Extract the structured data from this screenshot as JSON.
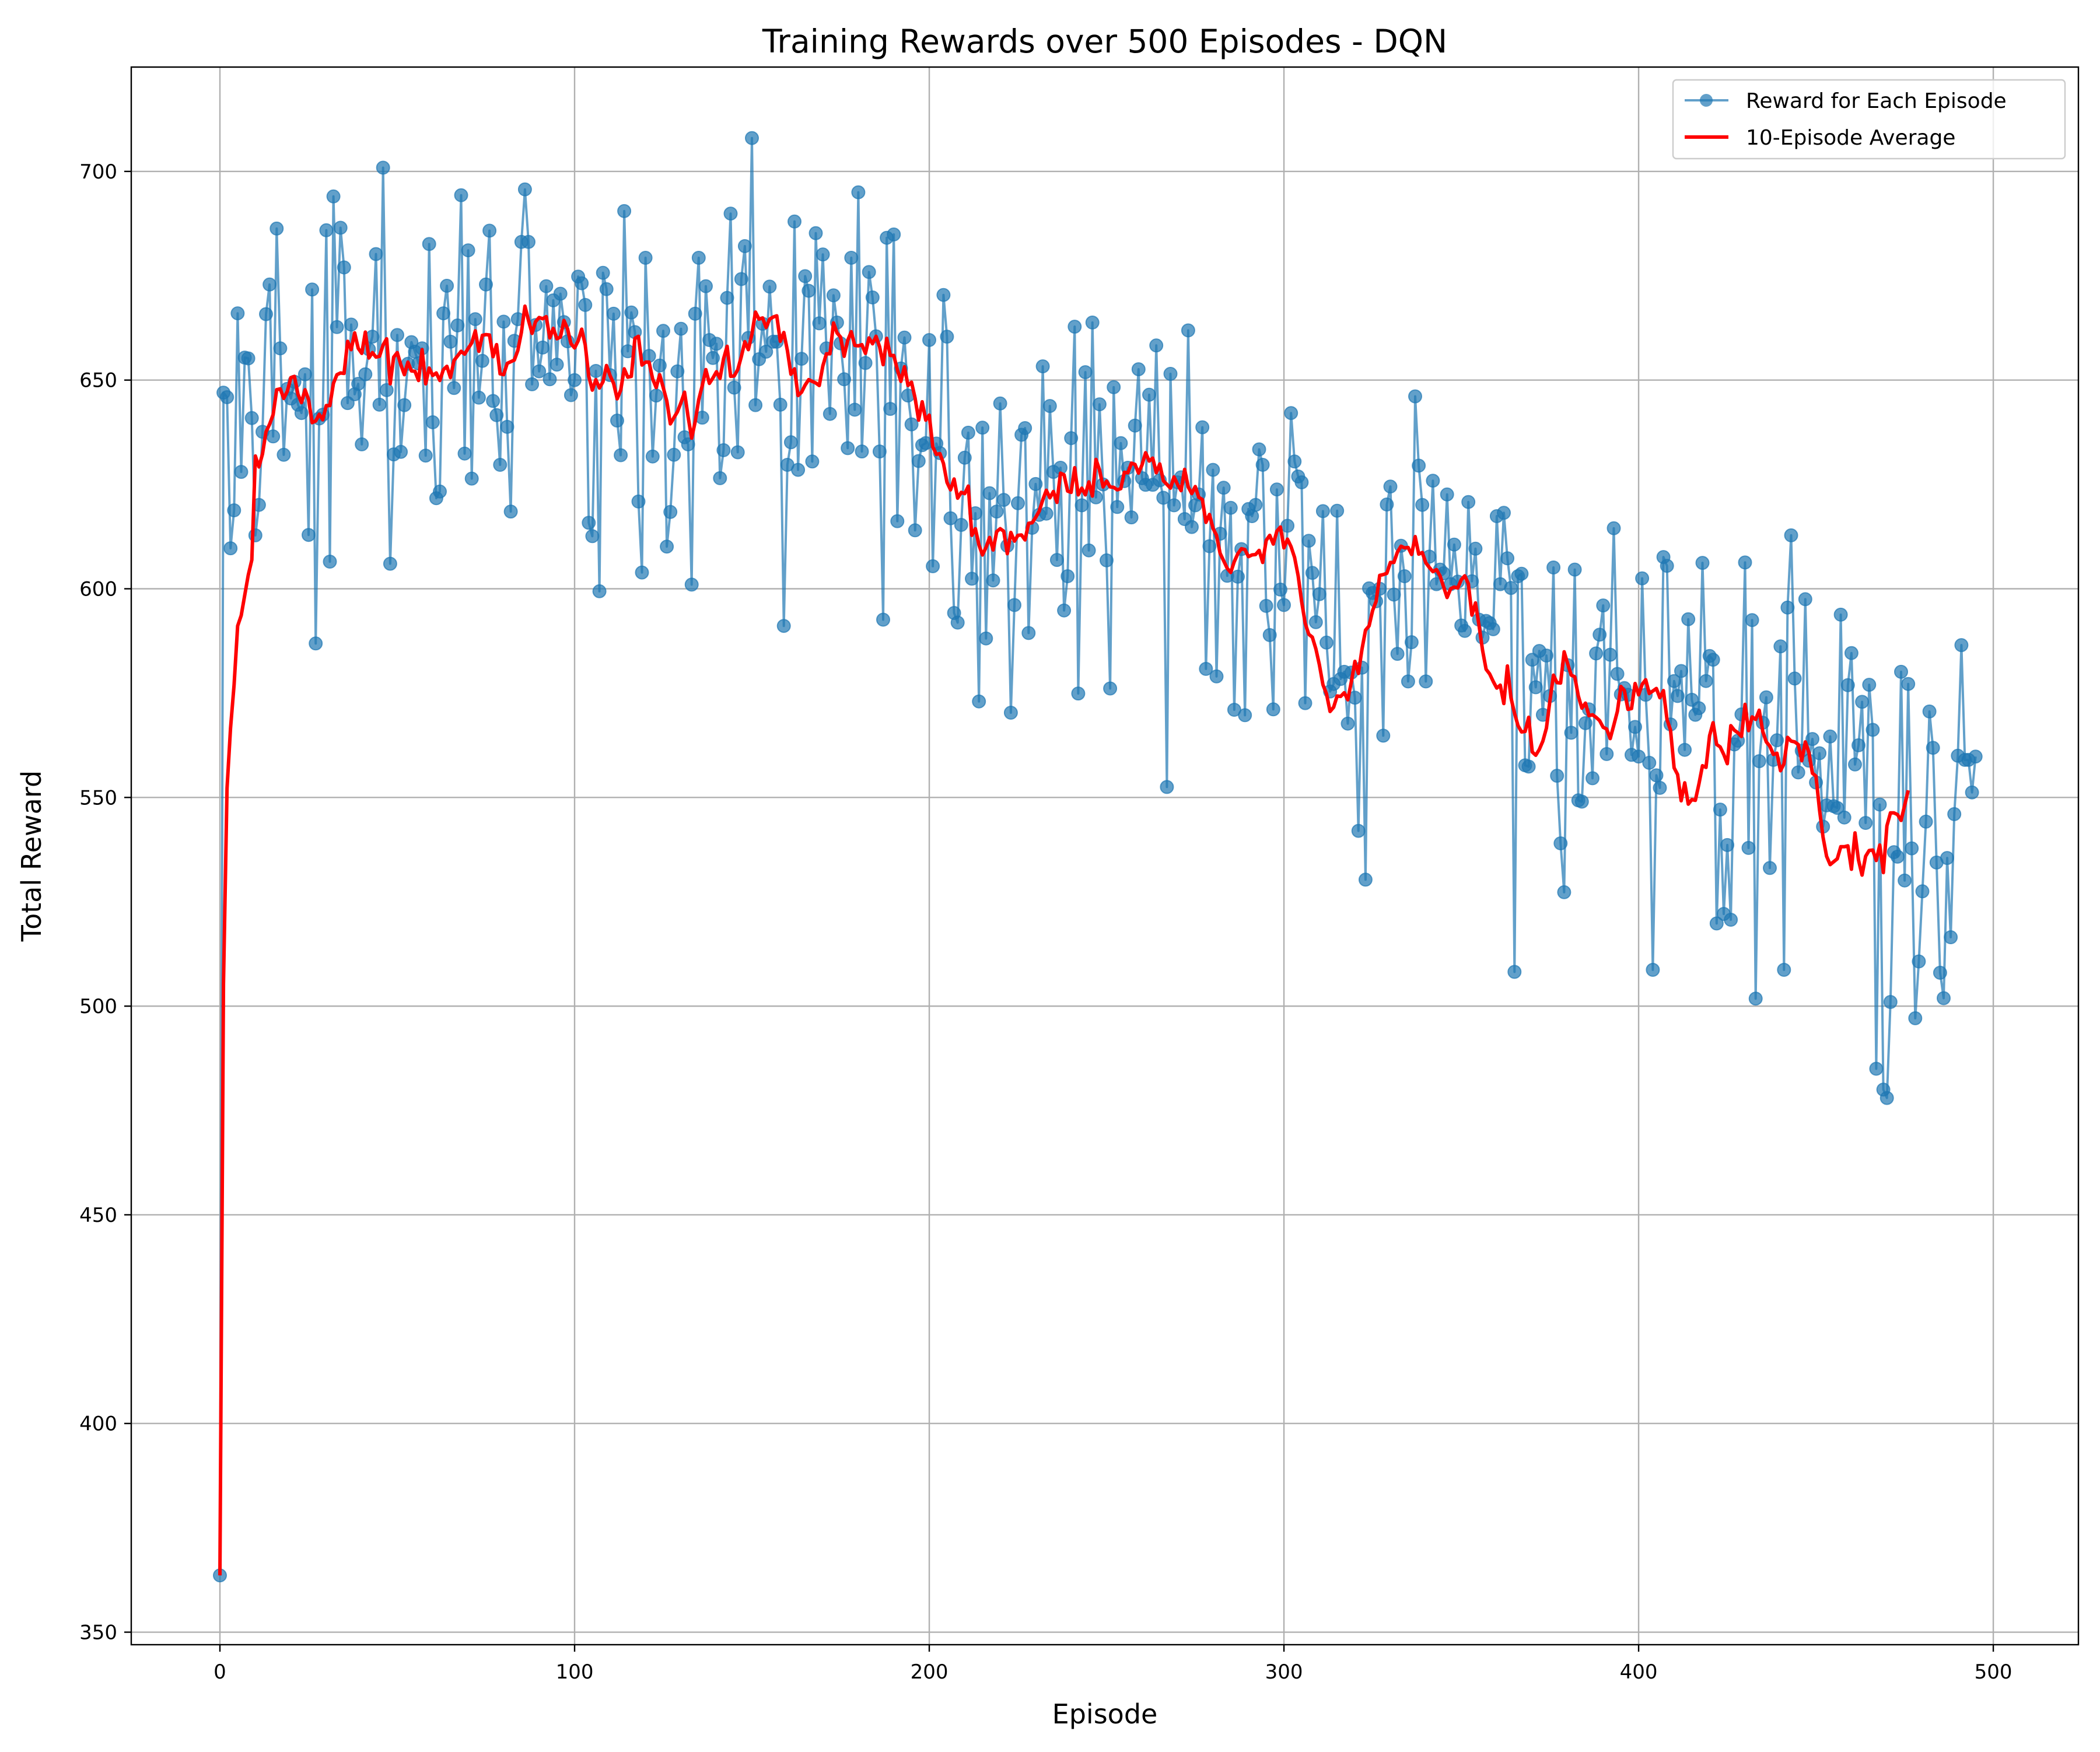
{
  "chart_data": {
    "type": "line",
    "title": "Training Rewards over 500 Episodes - DQN",
    "xlabel": "Episode",
    "ylabel": "Total Reward",
    "xlim": [
      -25,
      524
    ],
    "ylim": [
      347,
      725
    ],
    "xticks": [
      0,
      100,
      200,
      300,
      400,
      500
    ],
    "yticks": [
      350,
      400,
      450,
      500,
      550,
      600,
      650,
      700
    ],
    "grid": true,
    "legend_position": "top-right",
    "colors": {
      "raw": "#1f77b4",
      "average": "#ff0000"
    },
    "series": [
      {
        "name": "Reward for Each Episode",
        "marker": "circle",
        "x_start": 0,
        "values": [
          363.6,
          647.0,
          645.9,
          609.7,
          618.8,
          666.0,
          628.0,
          655.4,
          655.2,
          640.9,
          612.8,
          620.1,
          637.6,
          665.8,
          672.9,
          636.5,
          686.3,
          657.6,
          632.1,
          647.9,
          645.6,
          649.6,
          644.1,
          642.1,
          651.4,
          612.9,
          671.7,
          586.9,
          640.8,
          641.7,
          685.9,
          606.5,
          694.0,
          662.7,
          686.5,
          677.0,
          644.5,
          663.3,
          646.6,
          649.1,
          634.6,
          651.4,
          657.4,
          660.4,
          680.2,
          644.1,
          700.9,
          647.6,
          606.0,
          632.2,
          660.8,
          632.8,
          644.0,
          653.9,
          659.1,
          656.8,
          654.0,
          657.6,
          631.9,
          682.6,
          639.9,
          621.7,
          623.3,
          666.0,
          672.6,
          659.2,
          648.1,
          663.1,
          694.3,
          632.4,
          681.1,
          626.4,
          664.6,
          645.8,
          654.6,
          672.9,
          685.8,
          645.0,
          641.6,
          629.7,
          664.0,
          638.8,
          618.5,
          659.4,
          664.6,
          683.1,
          695.7,
          683.1,
          649.0,
          663.2,
          652.1,
          657.8,
          672.5,
          650.2,
          669.1,
          653.7,
          670.7,
          663.9,
          659.3,
          646.4,
          650.0,
          674.8,
          673.2,
          668.0,
          615.8,
          612.6,
          652.2,
          599.4,
          675.7,
          671.8,
          651.2,
          665.9,
          640.3,
          632.0,
          690.5,
          656.9,
          666.2,
          661.5,
          620.9,
          603.9,
          679.3,
          655.8,
          631.7,
          646.3,
          653.5,
          661.8,
          610.1,
          618.4,
          632.1,
          652.1,
          662.3,
          636.3,
          634.6,
          601.0,
          665.9,
          679.3,
          641.0,
          672.5,
          659.6,
          655.3,
          658.7,
          626.5,
          633.2,
          669.7,
          689.9,
          648.2,
          632.7,
          674.2,
          682.1,
          660.1,
          708.0,
          644.0,
          655.0,
          663.5,
          656.8,
          672.4,
          659.2,
          659.2,
          644.1,
          591.1,
          629.7,
          635.1,
          688.0,
          628.5,
          655.1,
          674.9,
          671.4,
          630.5,
          685.2,
          663.6,
          680.1,
          657.6,
          641.9,
          670.3,
          663.8,
          658.8,
          650.2,
          633.7,
          679.3,
          642.9,
          695.0,
          632.9,
          654.1,
          675.9,
          669.8,
          660.5,
          632.9,
          592.6,
          684.1,
          643.1,
          684.9,
          616.2,
          652.8,
          660.2,
          646.3,
          639.4,
          614.0,
          630.6,
          634.4,
          634.9,
          659.6,
          605.4,
          634.8,
          632.5,
          670.4,
          660.4,
          616.9,
          594.2,
          591.9,
          615.3,
          631.4,
          637.4,
          602.4,
          618.1,
          573.0,
          638.6,
          588.1,
          622.9,
          602.0,
          618.5,
          644.4,
          621.3,
          610.3,
          570.3,
          596.1,
          620.5,
          636.9,
          638.5,
          589.4,
          614.6,
          625.1,
          617.7,
          653.3,
          618.0,
          643.8,
          628.0,
          606.9,
          629.0,
          594.8,
          603.0,
          636.1,
          662.8,
          574.9,
          620.0,
          651.9,
          609.2,
          663.8,
          621.9,
          644.2,
          625.0,
          606.8,
          576.1,
          648.3,
          619.6,
          634.9,
          625.8,
          629.0,
          617.1,
          639.1,
          652.6,
          626.5,
          624.9,
          646.5,
          624.9,
          658.3,
          626.0,
          621.8,
          552.5,
          651.5,
          620.0,
          625.5,
          626.7,
          616.7,
          661.9,
          614.8,
          620.0,
          622.6,
          638.7,
          580.8,
          610.2,
          628.5,
          579.0,
          613.2,
          624.2,
          603.1,
          619.4,
          571.0,
          602.9,
          609.5,
          569.7,
          619.1,
          617.4,
          620.1,
          633.4,
          629.7,
          595.9,
          588.9,
          571.1,
          623.8,
          599.8,
          596.1,
          615.1,
          642.1,
          630.5,
          626.9,
          625.5,
          572.6,
          611.5,
          603.8,
          592.0,
          598.7,
          618.6,
          587.1,
          575.4,
          577.2,
          618.7,
          578.4,
          580.1,
          567.7,
          579.9,
          573.9,
          542.0,
          581.1,
          530.3,
          600.1,
          599.0,
          597.0,
          600.0,
          564.8,
          620.2,
          624.5,
          598.6,
          584.4,
          610.3,
          603.0,
          577.8,
          587.2,
          646.1,
          629.5,
          620.1,
          577.8,
          607.7,
          625.9,
          601.1,
          604.6,
          603.7,
          622.6,
          601.1,
          610.6,
          601.7,
          591.2,
          589.9,
          620.8,
          601.8,
          609.6,
          592.6,
          588.3,
          592.3,
          591.8,
          590.3,
          617.4,
          601.1,
          618.2,
          607.3,
          600.2,
          508.2,
          603.0,
          603.6,
          557.7,
          557.4,
          583.0,
          576.4,
          585.1,
          569.8,
          584.0,
          574.3,
          605.1,
          555.2,
          539.0,
          527.3,
          581.7,
          565.5,
          604.6,
          549.3,
          549.0,
          567.8,
          571.1,
          554.6,
          584.5,
          589.0,
          596.0,
          560.4,
          584.2,
          614.5,
          579.6,
          574.7,
          576.2,
          574.6,
          560.2,
          566.9,
          559.8,
          602.5,
          574.6,
          558.3,
          508.7,
          555.3,
          552.3,
          607.6,
          605.5,
          567.5,
          577.9,
          574.3,
          580.3,
          561.4,
          592.7,
          573.4,
          569.8,
          571.4,
          606.2,
          577.9,
          583.9,
          583.0,
          519.8,
          547.1,
          522.1,
          538.6,
          520.7,
          562.7,
          563.6,
          569.9,
          606.3,
          537.9,
          592.5,
          501.8,
          558.7,
          567.9,
          574.0,
          533.1,
          559.0,
          563.7,
          586.2,
          508.7,
          595.5,
          612.8,
          578.5,
          556.0,
          561.2,
          597.5,
          558.8,
          564.0,
          553.6,
          560.6,
          543.0,
          548.1,
          564.6,
          547.9,
          547.5,
          593.8,
          545.2,
          576.9,
          584.6,
          557.9,
          562.5,
          572.9,
          543.9,
          577.0,
          566.2,
          485.0,
          548.3,
          480.0,
          478.0,
          501.0,
          536.9,
          535.8,
          580.1,
          530.1,
          577.2,
          537.8,
          497.1,
          510.7,
          527.5,
          544.2,
          570.6,
          561.9,
          534.4,
          508.0,
          501.9,
          535.5,
          516.5,
          546.0,
          560.0,
          586.5,
          559.0,
          559.0,
          551.2,
          559.8
        ]
      },
      {
        "name": "10-Episode Average",
        "x_start": 0,
        "values": [
          363.6,
          505.3,
          552.2,
          566.6,
          577.0,
          591.1,
          593.6,
          598.5,
          603.3,
          606.9,
          631.8,
          629.2,
          632.3,
          637.6,
          639.4,
          641.7,
          647.7,
          647.9,
          645.6,
          647.3,
          650.6,
          650.9,
          646.6,
          644.6,
          647.7,
          645.3,
          639.8,
          640.2,
          641.8,
          640.5,
          643.9,
          643.9,
          649.2,
          651.3,
          651.7,
          651.6,
          659.3,
          657.3,
          661.3,
          657.6,
          656.4,
          661.5,
          655.3,
          656.6,
          655.5,
          655.7,
          658.4,
          659.9,
          649.1,
          655.5,
          656.6,
          653.7,
          651.3,
          654.3,
          652.2,
          652.1,
          649.9,
          657.3,
          649.1,
          652.9,
          651.1,
          651.7,
          649.9,
          652.5,
          653.3,
          650.6,
          654.7,
          655.8,
          656.9,
          656.2,
          657.6,
          658.9,
          661.8,
          656.9,
          660.7,
          660.9,
          660.8,
          655.6,
          658.5,
          651.5,
          651.3,
          654.0,
          654.4,
          654.8,
          657.1,
          661.4,
          667.7,
          664.3,
          661.2,
          664.0,
          665.0,
          664.7,
          665.2,
          660.1,
          662.4,
          659.9,
          660.3,
          664.3,
          662.3,
          658.7,
          657.7,
          659.4,
          662.2,
          658.4,
          650.9,
          647.6,
          650.1,
          648.1,
          649.6,
          653.5,
          651.1,
          649.2,
          645.5,
          647.6,
          652.7,
          650.7,
          650.9,
          660.0,
          660.5,
          653.6,
          654.3,
          654.3,
          650.3,
          648.2,
          651.3,
          648.2,
          645.0,
          639.5,
          641.0,
          642.4,
          644.6,
          647.1,
          641.2,
          636.1,
          640.0,
          645.3,
          648.7,
          652.5,
          649.2,
          650.5,
          652.0,
          650.4,
          655.1,
          658.1,
          650.9,
          651.0,
          652.5,
          655.6,
          659.2,
          657.3,
          661.0,
          666.3,
          664.6,
          664.9,
          662.6,
          664.6,
          665.1,
          665.4,
          659.3,
          661.4,
          657.1,
          651.4,
          652.7,
          646.3,
          647.1,
          648.8,
          650.1,
          649.7,
          649.3,
          648.7,
          653.4,
          656.3,
          656.3,
          663.7,
          661.3,
          660.3,
          655.7,
          659.5,
          661.6,
          658.3,
          658.2,
          658.5,
          656.4,
          660.1,
          658.7,
          660.5,
          658.0,
          653.7,
          660.0,
          655.9,
          655.9,
          652.5,
          649.7,
          653.2,
          648.7,
          649.5,
          645.7,
          640.4,
          644.8,
          640.4,
          641.6,
          634.0,
          632.2,
          632.4,
          630.0,
          625.5,
          623.7,
          626.3,
          621.7,
          623.1,
          622.8,
          624.6,
          612.8,
          614.4,
          610.5,
          608.1,
          609.9,
          612.3,
          609.3,
          613.7,
          614.4,
          613.8,
          608.4,
          613.5,
          611.4,
          612.8,
          612.9,
          611.7,
          615.7,
          615.8,
          617.1,
          618.6,
          621.3,
          623.6,
          621.8,
          623.3,
          620.7,
          627.7,
          627.3,
          623.4,
          623.1,
          629.0,
          622.5,
          624.1,
          622.5,
          625.6,
          622.2,
          631.0,
          628.5,
          624.4,
          625.8,
          624.4,
          624.3,
          623.7,
          624.0,
          627.9,
          627.8,
          630.1,
          629.8,
          627.7,
          629.7,
          632.6,
          630.6,
          631.3,
          627.8,
          629.9,
          625.9,
          625.0,
          624.1,
          626.8,
          625.0,
          623.5,
          628.6,
          624.4,
          622.8,
          624.5,
          621.9,
          621.4,
          615.9,
          617.8,
          614.5,
          612.8,
          608.5,
          606.7,
          604.9,
          603.9,
          606.5,
          608.4,
          609.6,
          609.4,
          607.7,
          608.1,
          608.2,
          609.2,
          606.3,
          611.6,
          612.8,
          610.7,
          613.8,
          614.8,
          609.8,
          611.9,
          610.1,
          607.5,
          603.1,
          596.9,
          591.7,
          589.1,
          588.4,
          585.6,
          581.8,
          577.0,
          574.8,
          570.6,
          571.6,
          574.3,
          574.2,
          575.1,
          573.4,
          577.7,
          582.6,
          579.7,
          585.5,
          590.1,
          591.1,
          594.8,
          597.0,
          603.2,
          603.4,
          603.7,
          606.3,
          606.3,
          608.8,
          610.2,
          609.8,
          609.9,
          608.2,
          612.5,
          608.3,
          608.7,
          606.2,
          605.1,
          604.1,
          604.6,
          603.1,
          600.5,
          597.9,
          600.0,
          600.4,
          600.2,
          602.2,
          603.1,
          601.2,
          593.7,
          596.6,
          591.2,
          585.3,
          580.7,
          579.6,
          577.8,
          576.2,
          576.9,
          572.5,
          581.5,
          573.9,
          570.2,
          567.2,
          565.7,
          565.8,
          569.2,
          560.9,
          560.1,
          561.5,
          563.5,
          566.6,
          573.3,
          579.3,
          577.5,
          577.4,
          584.9,
          582.0,
          579.3,
          578.9,
          574.3,
          571.4,
          572.6,
          569.6,
          569.8,
          569.2,
          568.4,
          566.8,
          566.4,
          564.1,
          567.3,
          570.6,
          576.6,
          575.6,
          571.1,
          571.3,
          577.3,
          574.6,
          577.1,
          578.2,
          574.9,
          575.5,
          576.1,
          573.9,
          575.6,
          568.7,
          566.1,
          557.1,
          555.5,
          549.2,
          553.5,
          548.4,
          549.5,
          549.3,
          553.2,
          557.6,
          557.2,
          564.8,
          567.9,
          562.7,
          562.1,
          560.3,
          558.1,
          567.2,
          566.1,
          565.5,
          564.6,
          572.3,
          566.0,
          569.3,
          568.7,
          570.9,
          565.8,
          563.3,
          562.3,
          560.3,
          560.6,
          556.4,
          558.1,
          564.4,
          563.5,
          563.3,
          562.7,
          558.8,
          563.3,
          560.8,
          555.8,
          555.1,
          547.1,
          540.5,
          535.9,
          533.9,
          534.6,
          535.3,
          538.2,
          538.2,
          538.4,
          532.8,
          541.5,
          535.0,
          531.4,
          535.9,
          537.3,
          537.4,
          534.9,
          538.6,
          532.0,
          543.2,
          546.3,
          546.3,
          545.9,
          544.5,
          548.1,
          551.7
        ]
      }
    ]
  }
}
